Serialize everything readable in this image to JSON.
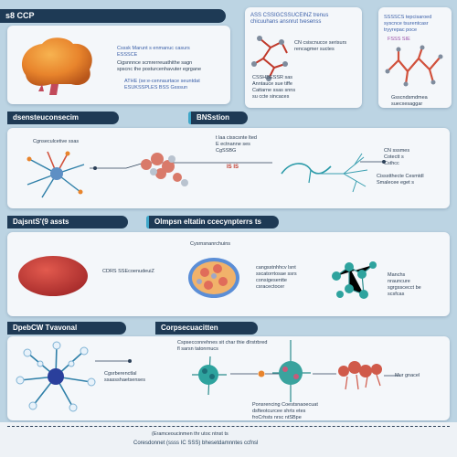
{
  "header_top": "s8 CCP",
  "panel_top_text": {
    "line1": "Csssk Marunt  s enmanuc casurs",
    "line2": "ESSSCE",
    "line3": "Cigsnnnce scmrerreuathithe sagn\nspscnc the posturcenhavuter egrgane",
    "line4": "ATHE  (se:e-cennaurtace  seuntdat\nESUKSSPLES BSS Gsssun",
    "mid_title": "ASS CSSIGCSSUCEINZ trenus\nchicuuhans ansnrut tvesenss",
    "mid_line2": "CN csiscnucce serisurs\nrencagmer suctes",
    "mid_line3": "CSSHBESSR  sas\nAnntauce sue tiffe\nCattarne ssas snns\nsu ccte sincaces",
    "right_title": "SSSSCS tepcisaroed\nsyscnce tsurentcasr\ntryyrepac poce",
    "right_line2": "FSSS SIE",
    "right_line3": "Gsscndsmdmea\nsuecxesaggar"
  },
  "section2": {
    "header_left": "dsensteuconsecim",
    "header_right": "BNSstion",
    "label_left": "Cgnseculcetive ssas",
    "label_mid": "t  laa  cisscsnte  lted\nE ectnanne ses\nCgSSBG",
    "label_red": "IS IS",
    "label_right": "CN sssmes\nCotectt s\nCsthcc",
    "label_right2": "Cissstthecte Cesmtdl\nSmalecee eget s"
  },
  "section3": {
    "header_left": "DajsntS'(9 assts",
    "header_right": "Olmpsn eltatin ccecynpterrs ts",
    "label_top": "Cysrnsnanrchuins",
    "label_left": "CDRS SSEcoenudeuiZ",
    "label_mid": "cangsstnhhcv lsnt\nsscatorrtosae ssrs\nconsigesentte\ncsracectocer",
    "label_right": "Manchs\nnrauncure\nsgrgsscecct be\nscsfcas"
  },
  "section4": {
    "header_left": "DpebCW Tvavonal",
    "header_right": "Corpsecuacitten",
    "label_top": "Cspsecconrehnes sit char  thie  dlrstrbred\nfl sarsn  tatonrnucs",
    "label_left": "Cgsrberenctlal\nssassshaetsenses",
    "label_mid": "Ponsrencing  Coestsnaoecuat\ndsfteotcurcee shrts etes\nfroCrhsts nrsc ntSBpe",
    "label_right": "Mur gnacel",
    "footer_line1": "(Eramceoucinmen thr  utoc  ntnst  ts",
    "footer_line2": "Coresdonnet (ssss  IC SSS)  bhesetdamnntes  ccfnsl"
  },
  "colors": {
    "navy": "#1e3a55",
    "teal": "#2a9aa8",
    "red": "#c0392b",
    "orange": "#e8842c",
    "background": "#bcd4e3"
  },
  "icons": [
    "brain-icon",
    "protein-icon",
    "neuron-icon",
    "molecule-icon",
    "receptor-icon",
    "cell-icon"
  ]
}
